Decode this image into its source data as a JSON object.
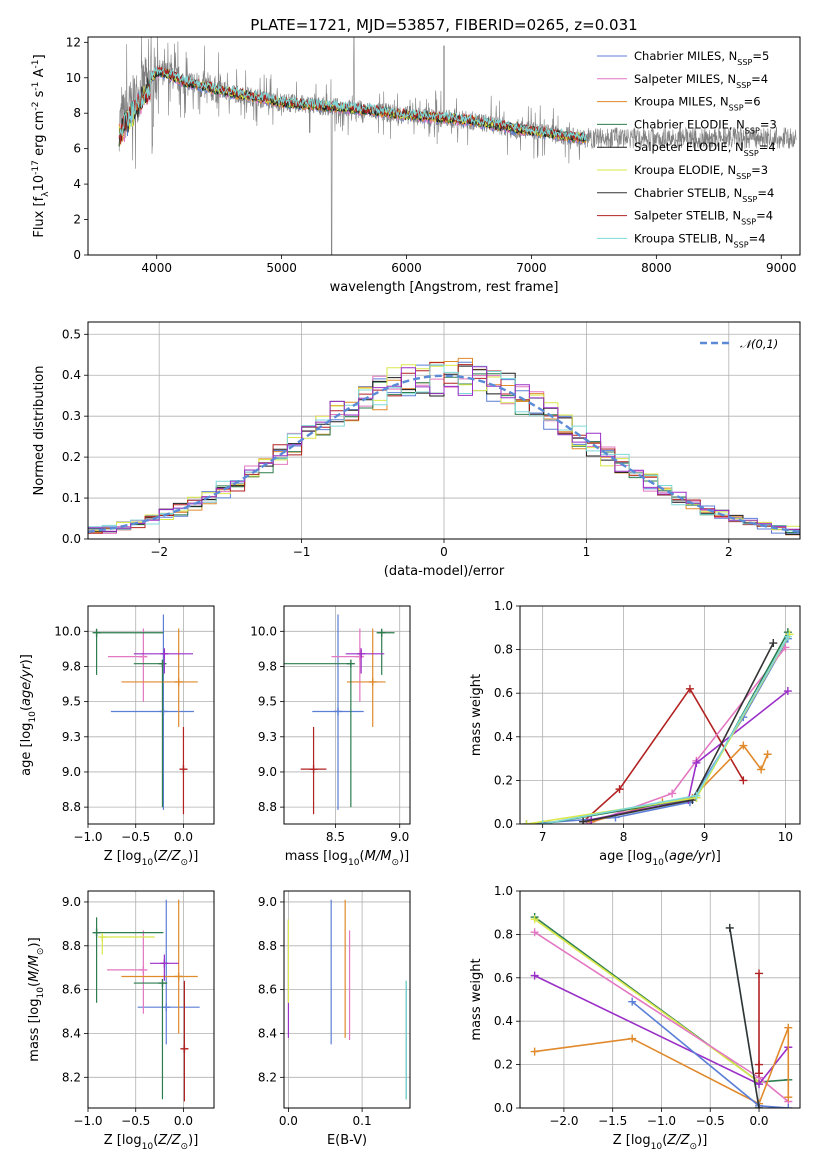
{
  "colors": {
    "chabrier_miles": "#5b7fd6",
    "salpeter_miles": "#e377c2",
    "kroupa_miles": "#e08a2c",
    "chabrier_elodie": "#2e7d4f",
    "salpeter_elodie": "#1a1a1a",
    "kroupa_elodie": "#d9e84a",
    "chabrier_stelib": "#333333",
    "salpeter_stelib": "#b22222",
    "kroupa_stelib": "#7fd8d8",
    "purple": "#9b30c8",
    "data_gray": "#808080",
    "normal": "#5b8bd6"
  },
  "chart_data": [
    {
      "id": "spectrum",
      "type": "line",
      "title": "PLATE=1721, MJD=53857, FIBERID=0265, z=0.031",
      "xlabel": "wavelength [Angstrom, rest frame]",
      "ylabel": "Flux [f$_\\lambda$10$^{-17}$ erg cm$^{-2}$ s$^{-1}$ A$^{-1}$]",
      "xlim": [
        3450,
        9150
      ],
      "ylim": [
        0,
        12.3
      ],
      "xticks": [
        4000,
        5000,
        6000,
        7000,
        8000,
        9000
      ],
      "yticks": [
        0,
        2,
        4,
        6,
        8,
        10,
        12
      ],
      "data_profile": {
        "x": [
          3700,
          3800,
          3900,
          4000,
          4100,
          4200,
          4500,
          5000,
          5500,
          6000,
          6500,
          7000,
          7400
        ],
        "y": [
          7.4,
          8.5,
          9.6,
          10.3,
          10.2,
          9.8,
          9.3,
          8.6,
          8.3,
          7.9,
          7.6,
          7.0,
          6.6
        ]
      },
      "legend": [
        {
          "name": "Chabrier MILES, N$_{SSP}$=5",
          "color": "#5b7fd6"
        },
        {
          "name": "Salpeter MILES, N$_{SSP}$=4",
          "color": "#e377c2"
        },
        {
          "name": "Kroupa MILES, N$_{SSP}$=6",
          "color": "#e08a2c"
        },
        {
          "name": "Chabrier ELODIE, N$_{SSP}$=3",
          "color": "#2e7d4f"
        },
        {
          "name": "Salpeter ELODIE, N$_{SSP}$=4",
          "color": "#1a1a1a"
        },
        {
          "name": "Kroupa ELODIE, N$_{SSP}$=3",
          "color": "#d9e84a"
        },
        {
          "name": "Chabrier STELIB, N$_{SSP}$=4",
          "color": "#333333"
        },
        {
          "name": "Salpeter STELIB, N$_{SSP}$=4",
          "color": "#b22222"
        },
        {
          "name": "Kroupa STELIB, N$_{SSP}$=4",
          "color": "#7fd8d8"
        }
      ]
    },
    {
      "id": "residuals",
      "type": "line",
      "xlabel": "(data-model)/error",
      "ylabel": "Normed distribution",
      "xlim": [
        -2.5,
        2.5
      ],
      "ylim": [
        0,
        0.53
      ],
      "xticks": [
        -2,
        -1,
        0,
        1,
        2
      ],
      "yticks": [
        0.0,
        0.1,
        0.2,
        0.3,
        0.4,
        0.5
      ],
      "grid": true,
      "legend": [
        {
          "name": "$\\mathcal{N}(0,1)$",
          "color": "#5b8bd6"
        }
      ],
      "histogram_bins": [
        -2.5,
        2.5,
        0.1
      ]
    },
    {
      "id": "age_vs_Z",
      "type": "scatter",
      "xlabel": "Z [log$_{10}$($Z/Z_\\odot$)]",
      "ylabel": "age  [log$_{10}$($age/yr$)]",
      "xlim": [
        -1.0,
        0.32
      ],
      "ylim": [
        8.63,
        10.18
      ],
      "xticks": [
        -1.0,
        -0.5,
        0.0
      ],
      "yticks": [
        8.75,
        9.0,
        9.25,
        9.5,
        9.75,
        10.0
      ],
      "points": [
        {
          "x": -0.21,
          "y": 9.43,
          "xerr": [
            0.55,
            0.32
          ],
          "yerr": [
            0.7,
            0.69
          ],
          "color": "#5b7fd6"
        },
        {
          "x": -0.42,
          "y": 9.82,
          "xerr": [
            0.37,
            0
          ],
          "yerr": [
            0.32,
            0.2
          ],
          "color": "#e377c2"
        },
        {
          "x": -0.05,
          "y": 9.64,
          "xerr": [
            0.6,
            0.2
          ],
          "yerr": [
            0.32,
            0.38
          ],
          "color": "#e08a2c"
        },
        {
          "x": -0.91,
          "y": 9.99,
          "xerr": [
            0,
            0.7
          ],
          "yerr": [
            0.3,
            0
          ],
          "color": "#2e7d4f"
        },
        {
          "x": -0.22,
          "y": 9.77,
          "xerr": [
            0.3,
            0
          ],
          "yerr": [
            1.02,
            0
          ],
          "color": "#2e7d4f"
        },
        {
          "x": -0.2,
          "y": 9.84,
          "xerr": [
            0.32,
            0.3
          ],
          "yerr": [
            0.14,
            0.04
          ],
          "color": "#9b30c8"
        },
        {
          "x": 0.0,
          "y": 9.02,
          "xerr": [
            0,
            0.04
          ],
          "yerr": [
            0.32,
            0.3
          ],
          "color": "#b22222"
        }
      ]
    },
    {
      "id": "age_vs_mass",
      "type": "scatter",
      "xlabel": "mass [log$_{10}$($M/M_\\odot$)]",
      "ylabel": "",
      "xlim": [
        8.1,
        9.08
      ],
      "ylim": [
        8.63,
        10.18
      ],
      "xticks": [
        8.5,
        9.0
      ],
      "yticks": [
        8.75,
        9.0,
        9.25,
        9.5,
        9.75,
        10.0
      ],
      "points": [
        {
          "x": 8.52,
          "y": 9.43,
          "color": "#5b7fd6"
        },
        {
          "x": 8.69,
          "y": 9.82,
          "color": "#e377c2"
        },
        {
          "x": 8.79,
          "y": 9.64,
          "color": "#e08a2c"
        },
        {
          "x": 8.86,
          "y": 9.99,
          "color": "#2e7d4f"
        },
        {
          "x": 8.62,
          "y": 9.77,
          "color": "#2e7d4f"
        },
        {
          "x": 8.7,
          "y": 9.84,
          "color": "#9b30c8"
        },
        {
          "x": 8.33,
          "y": 9.02,
          "color": "#b22222"
        }
      ]
    },
    {
      "id": "massweight_vs_age",
      "type": "line",
      "xlabel": "age  [log$_{10}$($age/yr$)]",
      "ylabel": "mass weight",
      "xlim": [
        6.72,
        10.18
      ],
      "ylim": [
        0,
        1.0
      ],
      "xticks": [
        7,
        8,
        9,
        10
      ],
      "yticks": [
        0.0,
        0.2,
        0.4,
        0.6,
        0.8,
        1.0
      ],
      "series": [
        {
          "color": "#b22222",
          "x": [
            7.5,
            7.95,
            8.82,
            9.48
          ],
          "y": [
            0.01,
            0.16,
            0.62,
            0.2
          ]
        },
        {
          "color": "#5b7fd6",
          "x": [
            6.8,
            7.9,
            8.82,
            9.48,
            10.03
          ],
          "y": [
            0.0,
            0.03,
            0.1,
            0.49,
            0.85
          ]
        },
        {
          "color": "#e377c2",
          "x": [
            7.55,
            8.6,
            8.9,
            10.0
          ],
          "y": [
            0.0,
            0.14,
            0.29,
            0.81
          ]
        },
        {
          "color": "#e08a2c",
          "x": [
            7.6,
            8.48,
            8.85,
            9.48,
            9.7,
            9.78
          ],
          "y": [
            0.01,
            0.1,
            0.12,
            0.36,
            0.25,
            0.32
          ]
        },
        {
          "color": "#9b30c8",
          "x": [
            7.6,
            8.8,
            8.9,
            10.03
          ],
          "y": [
            0.02,
            0.11,
            0.28,
            0.61
          ]
        },
        {
          "color": "#2e7d4f",
          "x": [
            7.0,
            8.9,
            10.03
          ],
          "y": [
            0.0,
            0.12,
            0.88
          ]
        },
        {
          "color": "#333333",
          "x": [
            7.5,
            8.85,
            9.85
          ],
          "y": [
            0.01,
            0.11,
            0.83
          ]
        },
        {
          "color": "#d9e84a",
          "x": [
            6.8,
            8.9,
            10.05
          ],
          "y": [
            0.0,
            0.12,
            0.87
          ]
        },
        {
          "color": "#7fd8d8",
          "x": [
            7.0,
            8.9,
            10.03
          ],
          "y": [
            0.0,
            0.13,
            0.86
          ]
        }
      ]
    },
    {
      "id": "mass_vs_Z",
      "type": "scatter",
      "xlabel": "Z [log$_{10}$($Z/Z_\\odot$)]",
      "ylabel": "mass [log$_{10}$($M/M_\\odot$)]",
      "xlim": [
        -1.0,
        0.32
      ],
      "ylim": [
        8.06,
        9.05
      ],
      "xticks": [
        -1.0,
        -0.5,
        0.0
      ],
      "yticks": [
        8.2,
        8.4,
        8.6,
        8.8,
        9.0
      ],
      "points": [
        {
          "x": -0.18,
          "y": 8.52,
          "color": "#5b7fd6"
        },
        {
          "x": -0.42,
          "y": 8.69,
          "color": "#e377c2"
        },
        {
          "x": -0.05,
          "y": 8.66,
          "color": "#e08a2c"
        },
        {
          "x": -0.91,
          "y": 8.86,
          "color": "#2e7d4f"
        },
        {
          "x": -0.22,
          "y": 8.63,
          "color": "#2e7d4f"
        },
        {
          "x": -0.85,
          "y": 8.84,
          "color": "#d9e84a"
        },
        {
          "x": -0.2,
          "y": 8.72,
          "color": "#9b30c8"
        },
        {
          "x": 0.01,
          "y": 8.33,
          "color": "#b22222"
        }
      ]
    },
    {
      "id": "mass_vs_ebv",
      "type": "scatter",
      "xlabel": "E(B-V)",
      "ylabel": "",
      "xlim": [
        -0.006,
        0.165
      ],
      "ylim": [
        8.06,
        9.05
      ],
      "xticks": [
        0.0,
        0.1
      ],
      "yticks": [
        8.2,
        8.4,
        8.6,
        8.8,
        9.0
      ],
      "points": [
        {
          "x": 0.0,
          "y": 8.72,
          "color": "#9b30c8"
        },
        {
          "x": 0.0,
          "y": 8.78,
          "color": "#d9e84a"
        },
        {
          "x": 0.058,
          "y": 8.52,
          "color": "#5b7fd6"
        },
        {
          "x": 0.077,
          "y": 8.66,
          "color": "#e08a2c"
        },
        {
          "x": 0.083,
          "y": 8.69,
          "color": "#e377c2"
        },
        {
          "x": 0.16,
          "y": 8.63,
          "color": "#2e7d4f"
        },
        {
          "x": 0.16,
          "y": 8.38,
          "color": "#7fd8d8"
        }
      ]
    },
    {
      "id": "massweight_vs_Z",
      "type": "line",
      "xlabel": "Z [log$_{10}$($Z/Z_\\odot$)]",
      "ylabel": "mass weight",
      "xlim": [
        -2.45,
        0.42
      ],
      "ylim": [
        0,
        1.0
      ],
      "xticks": [
        -2.0,
        -1.5,
        -1.0,
        -0.5,
        0.0
      ],
      "yticks": [
        0.0,
        0.2,
        0.4,
        0.6,
        0.8,
        1.0
      ],
      "series": [
        {
          "color": "#2e7d4f",
          "x": [
            -2.3,
            0.0,
            0.3
          ],
          "y": [
            0.88,
            0.12,
            0.13
          ]
        },
        {
          "color": "#d9e84a",
          "x": [
            -2.3,
            0.0
          ],
          "y": [
            0.87,
            0.12
          ]
        },
        {
          "color": "#e377c2",
          "x": [
            -2.3,
            0.0,
            0.3
          ],
          "y": [
            0.81,
            0.14,
            0.03
          ]
        },
        {
          "color": "#9b30c8",
          "x": [
            -2.3,
            0.0,
            0.3
          ],
          "y": [
            0.61,
            0.11,
            0.28
          ]
        },
        {
          "color": "#e08a2c",
          "x": [
            -2.3,
            -1.3,
            0.0,
            0.3,
            0.3
          ],
          "y": [
            0.26,
            0.32,
            0.02,
            0.37,
            0.05
          ]
        },
        {
          "color": "#5b7fd6",
          "x": [
            -1.3,
            0.0,
            0.3
          ],
          "y": [
            0.49,
            0.01,
            0.0
          ]
        },
        {
          "color": "#7fd8d8",
          "x": [
            -0.3,
            0.0
          ],
          "y": [
            0.83,
            0.0
          ]
        },
        {
          "color": "#333333",
          "x": [
            -0.3,
            0.0
          ],
          "y": [
            0.83,
            0.0
          ]
        },
        {
          "color": "#b22222",
          "x": [
            0.0,
            0.0,
            0.0
          ],
          "y": [
            0.62,
            0.2,
            0.16
          ]
        }
      ]
    }
  ]
}
